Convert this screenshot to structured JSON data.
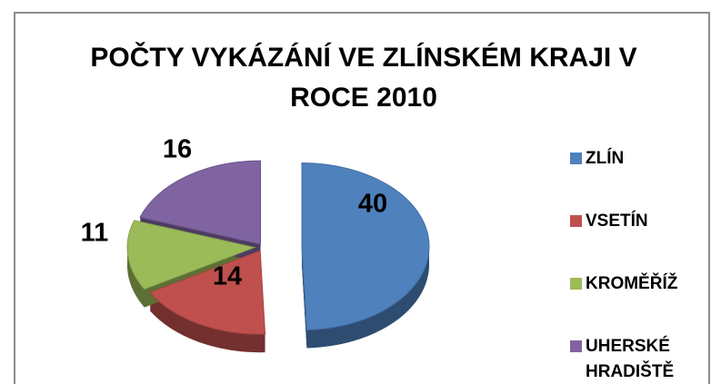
{
  "chart_data": {
    "type": "pie",
    "title": "POČTY VYKÁZÁNÍ VE ZLÍNSKÉM KRAJI V ROCE 2010",
    "categories": [
      "ZLÍN",
      "VSETÍN",
      "KROMĚŘÍŽ",
      "UHERSKÉ HRADIŠTĚ"
    ],
    "values": [
      40,
      14,
      11,
      16
    ],
    "colors": [
      "#4f81bd",
      "#c0504d",
      "#9bbb59",
      "#8064a2"
    ],
    "legend": "right"
  }
}
